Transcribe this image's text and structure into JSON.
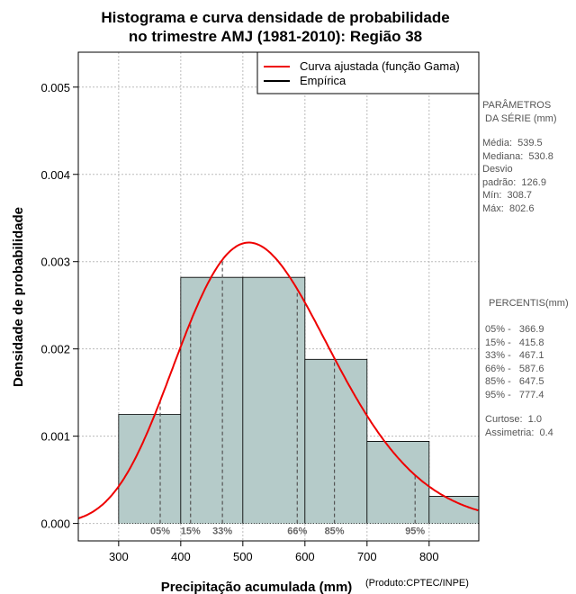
{
  "chart_data": {
    "type": "histogram",
    "title": [
      "Histograma e curva densidade de probabilidade",
      "no trimestre AMJ (1981-2010): Região 38"
    ],
    "xlabel": "Precipitação acumulada (mm)",
    "ylabel": "Densidade de probabilidade",
    "xlim": [
      235,
      880
    ],
    "ylim": [
      -0.0002,
      0.0054
    ],
    "xticks": [
      300,
      400,
      500,
      600,
      700,
      800
    ],
    "yticks": [
      0.0,
      0.001,
      0.002,
      0.003,
      0.004,
      0.005
    ],
    "ytick_labels": [
      "0.000",
      "0.001",
      "0.002",
      "0.003",
      "0.004",
      "0.005"
    ],
    "bins": [
      {
        "from": 300,
        "to": 400,
        "density": 0.00125
      },
      {
        "from": 400,
        "to": 500,
        "density": 0.00282
      },
      {
        "from": 500,
        "to": 600,
        "density": 0.00282
      },
      {
        "from": 600,
        "to": 700,
        "density": 0.00188
      },
      {
        "from": 700,
        "to": 800,
        "density": 0.00094
      },
      {
        "from": 800,
        "to": 900,
        "density": 0.00031
      }
    ],
    "fitted_curve": {
      "distribution": "gamma",
      "mean": 539.5,
      "sd": 126.9,
      "color": "#ee0000"
    },
    "bar_color": "#b5cbc9",
    "grid": true,
    "legend": {
      "position": "top-right",
      "entries": [
        {
          "label": "Curva ajustada (função Gama)",
          "color": "#ee0000"
        },
        {
          "label": "Empírica",
          "color": "#000000"
        }
      ]
    },
    "percentiles": [
      {
        "label": "05%",
        "value": 366.9
      },
      {
        "label": "15%",
        "value": 415.8
      },
      {
        "label": "33%",
        "value": 467.1
      },
      {
        "label": "66%",
        "value": 587.6
      },
      {
        "label": "85%",
        "value": 647.5
      },
      {
        "label": "95%",
        "value": 777.4
      }
    ]
  },
  "side_panel": {
    "params_title": "PARÂMETROS\n DA SÉRIE (mm)",
    "params_values": "Média:  539.5\nMediana:  530.8\nDesvio\npadrão:  126.9\nMín:  308.7\nMáx:  802.6",
    "percentis_title": "PERCENTIS(mm)",
    "percentis_values": "05% -   366.9\n15% -   415.8\n33% -   467.1\n66% -   587.6\n85% -   647.5\n95% -   777.4",
    "shape_values": "Curtose:  1.0\nAssimetria:  0.4"
  },
  "credit": "(Produto:CPTEC/INPE)"
}
